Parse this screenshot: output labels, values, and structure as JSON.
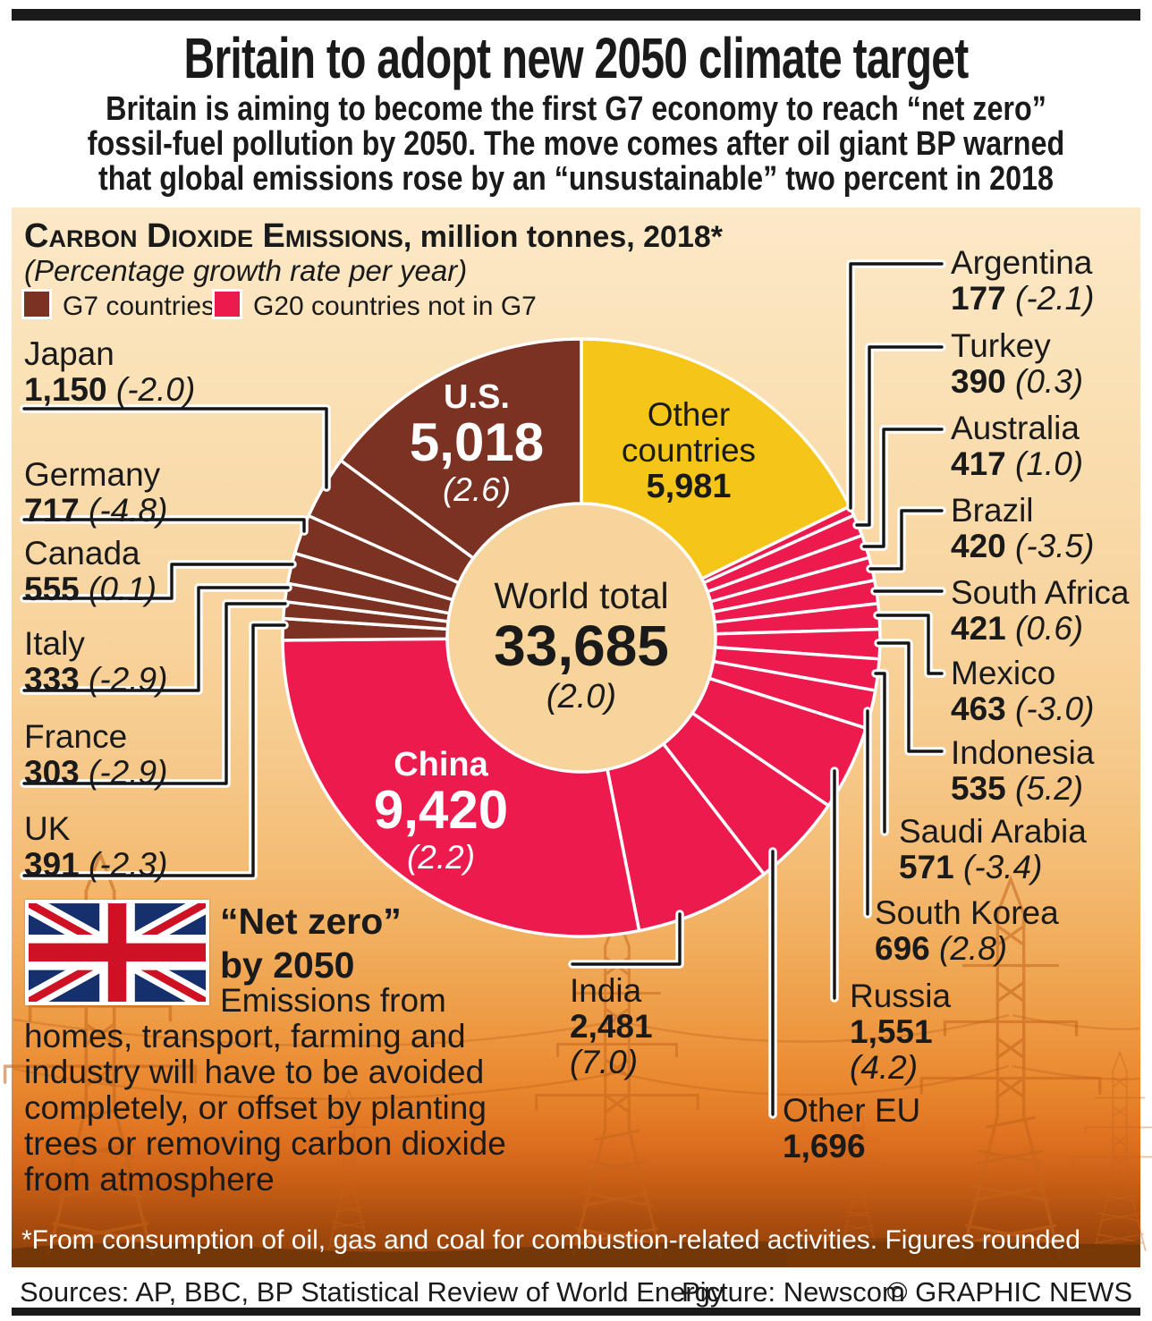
{
  "page": {
    "title": "Britain to adopt new 2050 climate target",
    "subtitle_lines": [
      "Britain is aiming to become the first G7 economy to reach “net zero”",
      "fossil-fuel pollution by 2050. The move comes after oil giant BP warned",
      "that global emissions rose by an “unsustainable” two percent in 2018"
    ],
    "footnote": "*From consumption of oil, gas and coal for combustion-related activities. Figures rounded",
    "sources": "Sources: AP, BBC, BP Statistical Review of World Energy",
    "picture_credit": "Picture: Newscom",
    "copyright": "© GRAPHIC NEWS"
  },
  "net_zero": {
    "heading_line1": "“Net zero”",
    "heading_line2": "by 2050",
    "body_lines": [
      "Emissions from",
      "homes, transport, farming and",
      "industry will have to be avoided",
      "completely, or offset by planting",
      "trees or removing carbon dioxide",
      "from atmosphere"
    ]
  },
  "chart_data": {
    "type": "donut",
    "title_caps": "Carbon Dioxide Emissions",
    "title_rest": ", million tonnes, 2018*",
    "subtitle": "(Percentage growth rate per year)",
    "units": "million tonnes CO2, 2018",
    "center": {
      "label": "World total",
      "value": "33,685",
      "growth": "(2.0)"
    },
    "legend": [
      {
        "label": "G7 countries",
        "color": "#7c3223",
        "key": "g7"
      },
      {
        "label": "G20 countries not in G7",
        "color": "#ec1a4d",
        "key": "g20"
      }
    ],
    "colors": {
      "g7": "#7c3223",
      "g20": "#ec1a4d",
      "other": "#f5c517",
      "hole": "#f6d49c"
    },
    "slices": [
      {
        "name": "Other countries",
        "value": 5981,
        "display": "5,981",
        "growth": null,
        "group": "other"
      },
      {
        "name": "Argentina",
        "value": 177,
        "display": "177",
        "growth": "(-2.1)",
        "group": "g20"
      },
      {
        "name": "Turkey",
        "value": 390,
        "display": "390",
        "growth": "(0.3)",
        "group": "g20"
      },
      {
        "name": "Australia",
        "value": 417,
        "display": "417",
        "growth": "(1.0)",
        "group": "g20"
      },
      {
        "name": "Brazil",
        "value": 420,
        "display": "420",
        "growth": "(-3.5)",
        "group": "g20"
      },
      {
        "name": "South Africa",
        "value": 421,
        "display": "421",
        "growth": "(0.6)",
        "group": "g20"
      },
      {
        "name": "Mexico",
        "value": 463,
        "display": "463",
        "growth": "(-3.0)",
        "group": "g20"
      },
      {
        "name": "Indonesia",
        "value": 535,
        "display": "535",
        "growth": "(5.2)",
        "group": "g20"
      },
      {
        "name": "Saudi Arabia",
        "value": 571,
        "display": "571",
        "growth": "(-3.4)",
        "group": "g20"
      },
      {
        "name": "South Korea",
        "value": 696,
        "display": "696",
        "growth": "(2.8)",
        "group": "g20"
      },
      {
        "name": "Russia",
        "value": 1551,
        "display": "1,551",
        "growth": "(4.2)",
        "group": "g20"
      },
      {
        "name": "Other EU",
        "value": 1696,
        "display": "1,696",
        "growth": null,
        "group": "g20"
      },
      {
        "name": "India",
        "value": 2481,
        "display": "2,481",
        "growth": "(7.0)",
        "group": "g20"
      },
      {
        "name": "China",
        "value": 9420,
        "display": "9,420",
        "growth": "(2.2)",
        "group": "g20"
      },
      {
        "name": "UK",
        "value": 391,
        "display": "391",
        "growth": "(-2.3)",
        "group": "g7"
      },
      {
        "name": "France",
        "value": 303,
        "display": "303",
        "growth": "(-2.9)",
        "group": "g7"
      },
      {
        "name": "Italy",
        "value": 333,
        "display": "333",
        "growth": "(-2.9)",
        "group": "g7"
      },
      {
        "name": "Canada",
        "value": 555,
        "display": "555",
        "growth": "(0.1)",
        "group": "g7"
      },
      {
        "name": "Germany",
        "value": 717,
        "display": "717",
        "growth": "(-4.8)",
        "group": "g7"
      },
      {
        "name": "Japan",
        "value": 1150,
        "display": "1,150",
        "growth": "(-2.0)",
        "group": "g7"
      },
      {
        "name": "U.S.",
        "value": 5018,
        "display": "5,018",
        "growth": "(2.6)",
        "group": "g7"
      }
    ]
  }
}
